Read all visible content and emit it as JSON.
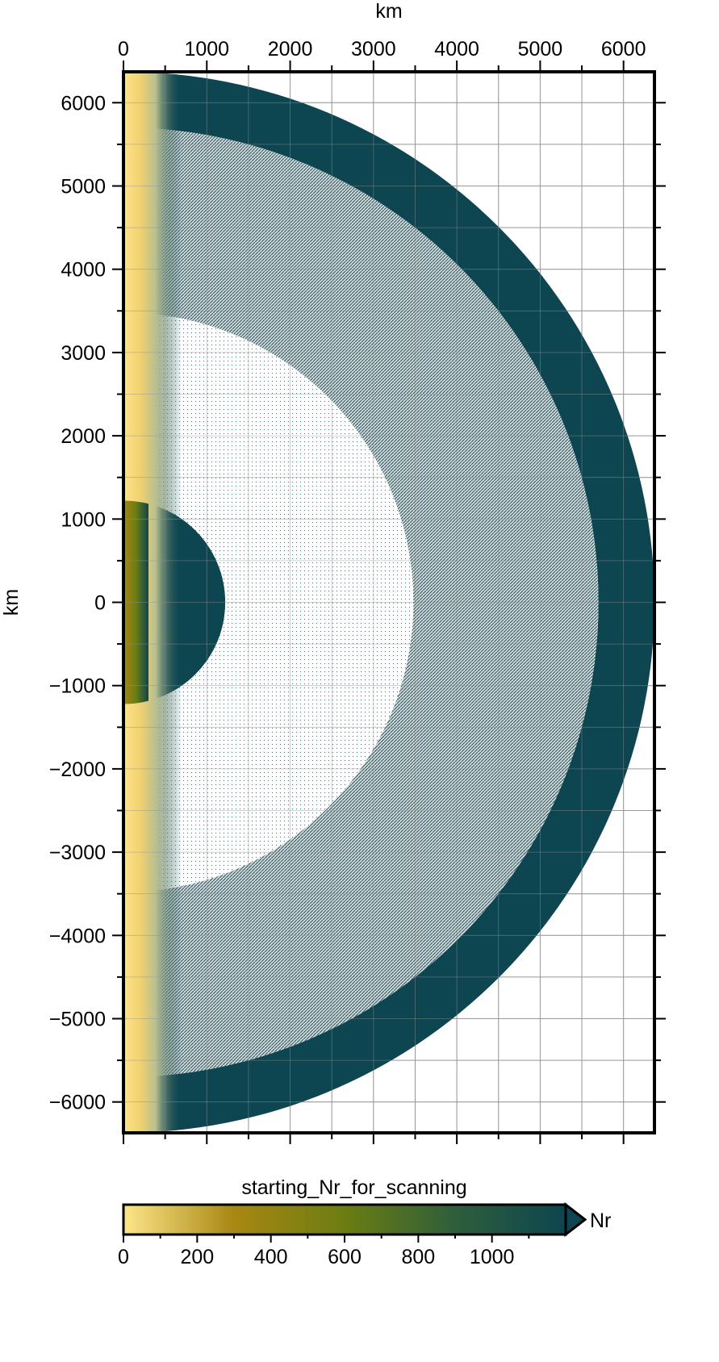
{
  "chart_data": {
    "type": "heatmap",
    "title": "",
    "xlabel": "km",
    "ylabel": "km",
    "xlim": [
      0,
      6371
    ],
    "ylim": [
      -6371,
      6371
    ],
    "xticks": [
      "0",
      "1000",
      "2000",
      "3000",
      "4000",
      "5000",
      "6000"
    ],
    "yticks": [
      "6000",
      "5000",
      "4000",
      "3000",
      "2000",
      "1000",
      "0",
      "−1000",
      "−2000",
      "−3000",
      "−4000",
      "−5000",
      "−6000"
    ],
    "grid": true,
    "layers": [
      {
        "r_inner": 5701,
        "r_outer": 6371,
        "pattern": "dense"
      },
      {
        "r_inner": 3480,
        "r_outer": 5701,
        "pattern": "hatched"
      },
      {
        "r_inner": 1221,
        "r_outer": 3480,
        "pattern": "sparse"
      },
      {
        "r_inner": 0,
        "r_outer": 1221,
        "pattern": "dense"
      }
    ],
    "colormap": [
      "#fde68a",
      "#a88712",
      "#6b7d12",
      "#2f5e3c",
      "#0d4550"
    ],
    "colorbar": {
      "label": "starting_Nr_for_scanning",
      "unit": "Nr",
      "range": [
        0,
        1200
      ],
      "ticks": [
        "0",
        "200",
        "400",
        "600",
        "800",
        "1000"
      ],
      "extend": "max"
    }
  }
}
